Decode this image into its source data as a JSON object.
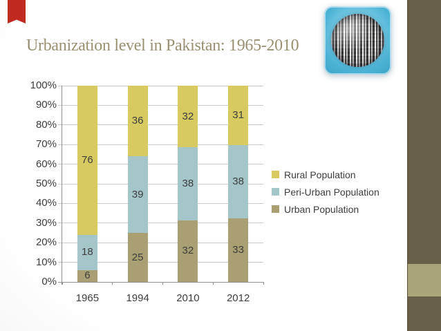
{
  "slide": {
    "title": "Urbanization level in Pakistan: 1965-2010",
    "title_color": "#999072"
  },
  "theme": {
    "bookmark_ribbon_color": "#C02B21",
    "band_dark": "#675F48",
    "band_accent_light": "#A8A57B",
    "background_edge": "#DEDEDE",
    "logo_blue_center": "#B5E6F4",
    "logo_blue_edge": "#3AA2C6"
  },
  "icons": {
    "logo": "globe-of-blocks-icon",
    "ribbon": "bookmark-ribbon-icon"
  },
  "chart_data": {
    "type": "bar",
    "stacked": true,
    "normalized_percent": true,
    "title": "",
    "xlabel": "",
    "ylabel": "",
    "categories": [
      "1965",
      "1994",
      "2010",
      "2012"
    ],
    "series": [
      {
        "name": "Urban Population",
        "color": "#A99F73",
        "values": [
          6,
          25,
          32,
          33
        ]
      },
      {
        "name": "Peri-Urban Population",
        "color": "#A5C6C8",
        "values": [
          18,
          39,
          38,
          38
        ]
      },
      {
        "name": "Rural Population",
        "color": "#D6CA61",
        "values": [
          76,
          36,
          32,
          31
        ]
      }
    ],
    "y_axis": {
      "min": 0,
      "max": 100,
      "step": 10,
      "ticks": [
        "0%",
        "10%",
        "20%",
        "30%",
        "40%",
        "50%",
        "60%",
        "70%",
        "80%",
        "90%",
        "100%"
      ]
    },
    "grid": true,
    "gridline_color": "#C9C9C9",
    "axis_color": "#8F8F8F",
    "data_labels": true,
    "label_color": "#3D3D3D",
    "legend_position": "right",
    "legend_order": [
      "Rural Population",
      "Peri-Urban Population",
      "Urban Population"
    ]
  }
}
